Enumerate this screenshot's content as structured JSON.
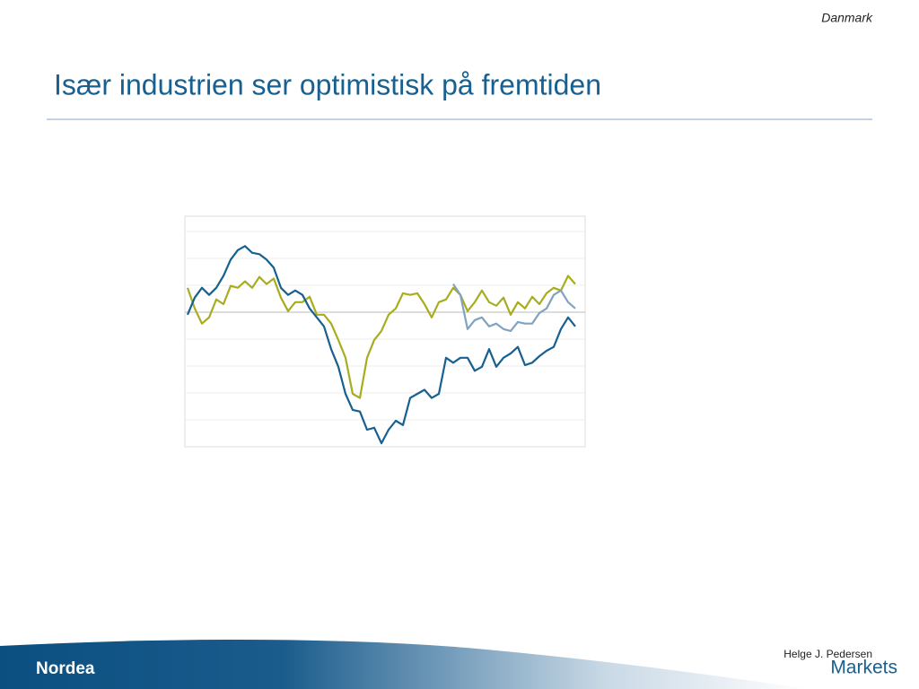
{
  "header": {
    "region": "Danmark",
    "title": "Især industrien ser optimistisk på fremtiden"
  },
  "footer": {
    "author": "Helge J. Pedersen",
    "logo": "Nordea",
    "brand": "Markets"
  },
  "chart_data": {
    "type": "line",
    "ylim": [
      -50,
      35
    ],
    "series": [
      {
        "color": "#a8ad1e",
        "values": [
          8.6,
          1,
          -4.6,
          -2.3,
          4.3,
          2.6,
          9.3,
          8.6,
          11,
          8.6,
          12.6,
          10,
          12,
          5,
          0,
          3.3,
          3.3,
          5.3,
          -1.3,
          -1.3,
          -4.6,
          -10.6,
          -17.2,
          -30.5,
          -32,
          -17.2,
          -10.6,
          -7.3,
          -1.3,
          1,
          6.6,
          6,
          6.6,
          2.6,
          -2.3,
          3.3,
          4.3,
          8.6,
          6,
          0,
          3.3,
          7.6,
          3.3,
          2,
          5,
          -1.3,
          3.3,
          1,
          5.3,
          2.6,
          6.6,
          8.6,
          7.6,
          13,
          10
        ]
      },
      {
        "color": "#7fa3c0",
        "values": [
          null,
          null,
          null,
          null,
          null,
          null,
          null,
          null,
          null,
          null,
          null,
          null,
          null,
          null,
          null,
          null,
          null,
          null,
          null,
          null,
          null,
          null,
          null,
          null,
          null,
          null,
          null,
          null,
          null,
          null,
          null,
          null,
          null,
          null,
          null,
          null,
          null,
          10,
          6,
          -6.6,
          -3.3,
          -2.3,
          -5.6,
          -4.6,
          -6.6,
          -7.3,
          -4,
          -4.6,
          -4.6,
          -0.7,
          1,
          6,
          7.6,
          3.3,
          1
        ]
      },
      {
        "color": "#17608f",
        "values": [
          -1.3,
          5,
          8.6,
          6,
          8.6,
          13,
          19,
          22.5,
          24,
          21.5,
          21,
          19,
          16,
          8.6,
          6,
          7.6,
          6,
          1,
          -2.3,
          -5.6,
          -14,
          -20.5,
          -30.5,
          -36.4,
          -37,
          -43.7,
          -43,
          -48.7,
          -43.7,
          -40.4,
          -42,
          -32,
          -30.5,
          -29,
          -32,
          -30.5,
          -17.2,
          -19,
          -17.2,
          -17.2,
          -22,
          -20.5,
          -14,
          -20.5,
          -17.2,
          -15.6,
          -13.2,
          -19.9,
          -19,
          -16.6,
          -14.6,
          -13.2,
          -6.6,
          -2.3,
          -5.6
        ]
      }
    ]
  }
}
